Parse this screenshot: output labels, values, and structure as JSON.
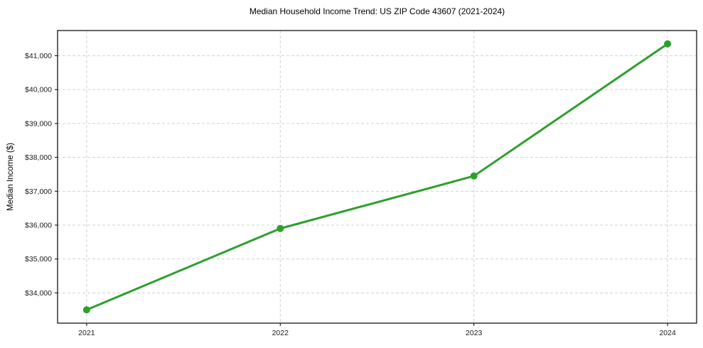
{
  "figure": {
    "background": "#ffffff"
  },
  "chart_data": {
    "type": "line",
    "title": "Median Household Income Trend: US ZIP Code 43607 (2021-2024)",
    "xlabel": "",
    "ylabel": "Median Income ($)",
    "categories": [
      "2021",
      "2022",
      "2023",
      "2024"
    ],
    "x": [
      2021,
      2022,
      2023,
      2024
    ],
    "series": [
      {
        "name": "Median Household Income",
        "values": [
          33500,
          35900,
          37450,
          41350
        ]
      }
    ],
    "xlim": [
      2020.85,
      2024.15
    ],
    "ylim": [
      33107,
      41743
    ],
    "ytick_values": [
      34000,
      35000,
      36000,
      37000,
      38000,
      39000,
      40000,
      41000
    ],
    "ytick_labels": [
      "$34,000",
      "$35,000",
      "$36,000",
      "$37,000",
      "$38,000",
      "$39,000",
      "$40,000",
      "$41,000"
    ],
    "grid": true,
    "grid_style": "dashed",
    "grid_color": "#cccccc",
    "line_color": "#2ca02c",
    "marker": "circle",
    "marker_size": 10,
    "legend": false,
    "legend_position": "none"
  }
}
